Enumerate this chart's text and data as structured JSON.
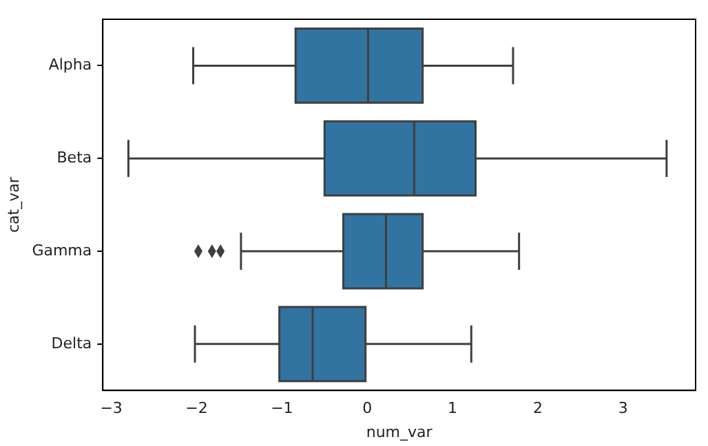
{
  "chart_data": {
    "type": "box",
    "orientation": "horizontal",
    "xlabel": "num_var",
    "ylabel": "cat_var",
    "categories": [
      "Alpha",
      "Beta",
      "Gamma",
      "Delta"
    ],
    "color": "#3274a1",
    "xlim": [
      -3.1,
      3.85
    ],
    "xticks": [
      -3,
      -2,
      -1,
      0,
      1,
      2,
      3
    ],
    "grid": false,
    "legend": false,
    "marker": "diamond",
    "boxes": [
      {
        "low": -2.04,
        "q1": -0.84,
        "median": 0.01,
        "q3": 0.65,
        "high": 1.71
      },
      {
        "low": -2.8,
        "q1": -0.5,
        "median": 0.55,
        "q3": 1.27,
        "high": 3.51
      },
      {
        "low": -1.48,
        "q1": -0.28,
        "median": 0.22,
        "q3": 0.65,
        "high": 1.78,
        "outliers": [
          -1.98,
          -1.82,
          -1.72
        ]
      },
      {
        "low": -2.02,
        "q1": -1.03,
        "median": -0.64,
        "q3": -0.02,
        "high": 1.22
      }
    ]
  }
}
